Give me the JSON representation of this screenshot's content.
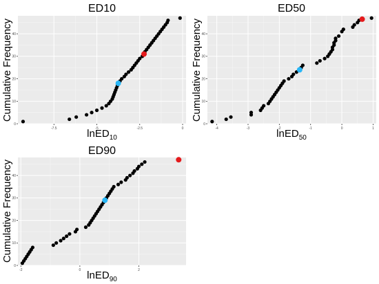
{
  "chart_data": [
    {
      "type": "scatter",
      "title": "ED10",
      "xlabel_base": "lnED",
      "xlabel_sub": "10",
      "ylabel": "Cumulative Frequency",
      "xlim": [
        -9.6,
        0.2
      ],
      "ylim": [
        0,
        48
      ],
      "x_ticks": [
        -7.5,
        -5,
        -2.5,
        0
      ],
      "x_tick_labels": [
        "-7.5",
        "-5",
        "-2.5",
        "0"
      ],
      "y_ticks": [
        0,
        10,
        20,
        30,
        40
      ],
      "y_tick_labels": [
        "0",
        "10",
        "20",
        "30",
        "40"
      ],
      "grid": true,
      "series": [
        {
          "color": "#000000",
          "points": [
            [
              -9.3,
              1
            ],
            [
              -6.6,
              2
            ],
            [
              -6.2,
              3
            ],
            [
              -5.6,
              4
            ],
            [
              -5.3,
              5
            ],
            [
              -5.0,
              6
            ],
            [
              -4.7,
              7
            ],
            [
              -4.45,
              8
            ],
            [
              -4.3,
              9
            ],
            [
              -4.2,
              10
            ],
            [
              -4.1,
              11
            ],
            [
              -4.05,
              12
            ],
            [
              -4.0,
              13
            ],
            [
              -3.95,
              14
            ],
            [
              -3.9,
              15
            ],
            [
              -3.85,
              16
            ],
            [
              -3.8,
              17
            ],
            [
              -3.65,
              19
            ],
            [
              -3.55,
              20
            ],
            [
              -3.4,
              21
            ],
            [
              -3.3,
              22
            ],
            [
              -3.15,
              23
            ],
            [
              -3.0,
              24
            ],
            [
              -2.9,
              25
            ],
            [
              -2.8,
              26
            ],
            [
              -2.7,
              27
            ],
            [
              -2.6,
              28
            ],
            [
              -2.5,
              29
            ],
            [
              -2.35,
              30
            ],
            [
              -2.2,
              32
            ],
            [
              -2.1,
              33
            ],
            [
              -2.0,
              34
            ],
            [
              -1.9,
              35
            ],
            [
              -1.8,
              36
            ],
            [
              -1.7,
              37
            ],
            [
              -1.6,
              38
            ],
            [
              -1.5,
              39
            ],
            [
              -1.4,
              40
            ],
            [
              -1.3,
              41
            ],
            [
              -1.2,
              42
            ],
            [
              -1.1,
              43
            ],
            [
              -1.0,
              44
            ],
            [
              -0.9,
              45
            ],
            [
              -0.85,
              46
            ],
            [
              -0.15,
              47
            ]
          ]
        },
        {
          "color": "#29b6f6",
          "points": [
            [
              -3.75,
              18
            ]
          ]
        },
        {
          "color": "#e41a1c",
          "points": [
            [
              -2.25,
              31
            ]
          ]
        }
      ]
    },
    {
      "type": "scatter",
      "title": "ED50",
      "xlabel_base": "lnED",
      "xlabel_sub": "50",
      "ylabel": "Cumulative Frequency",
      "xlim": [
        -4.3,
        1.1
      ],
      "ylim": [
        0,
        48
      ],
      "x_ticks": [
        -4,
        -3,
        -2,
        -1,
        0,
        1
      ],
      "x_tick_labels": [
        "-4",
        "-3",
        "-2",
        "-1",
        "0",
        "1"
      ],
      "y_ticks": [
        0,
        10,
        20,
        30,
        40
      ],
      "y_tick_labels": [
        "0",
        "10",
        "20",
        "30",
        "40"
      ],
      "grid": true,
      "series": [
        {
          "color": "#000000",
          "points": [
            [
              -4.15,
              1
            ],
            [
              -3.7,
              2
            ],
            [
              -3.55,
              3
            ],
            [
              -2.9,
              4
            ],
            [
              -2.9,
              5
            ],
            [
              -2.6,
              6
            ],
            [
              -2.55,
              7
            ],
            [
              -2.5,
              8
            ],
            [
              -2.35,
              9
            ],
            [
              -2.3,
              10
            ],
            [
              -2.25,
              11
            ],
            [
              -2.2,
              12
            ],
            [
              -2.15,
              13
            ],
            [
              -2.1,
              14
            ],
            [
              -2.05,
              15
            ],
            [
              -2.0,
              16
            ],
            [
              -1.95,
              17
            ],
            [
              -1.9,
              18
            ],
            [
              -1.85,
              19
            ],
            [
              -1.7,
              20
            ],
            [
              -1.6,
              21
            ],
            [
              -1.55,
              22
            ],
            [
              -1.45,
              23
            ],
            [
              -1.3,
              25
            ],
            [
              -1.25,
              26
            ],
            [
              -0.8,
              27
            ],
            [
              -0.7,
              28
            ],
            [
              -0.55,
              29
            ],
            [
              -0.45,
              30
            ],
            [
              -0.4,
              31
            ],
            [
              -0.35,
              32
            ],
            [
              -0.3,
              33
            ],
            [
              -0.3,
              34
            ],
            [
              -0.25,
              35
            ],
            [
              -0.25,
              36
            ],
            [
              -0.2,
              37
            ],
            [
              -0.2,
              38
            ],
            [
              -0.1,
              39
            ],
            [
              0.0,
              41
            ],
            [
              0.05,
              42
            ],
            [
              0.35,
              43
            ],
            [
              0.4,
              44
            ],
            [
              0.5,
              45
            ],
            [
              0.55,
              46
            ],
            [
              0.95,
              47
            ]
          ]
        },
        {
          "color": "#29b6f6",
          "points": [
            [
              -1.35,
              24
            ]
          ]
        },
        {
          "color": "#e41a1c",
          "points": [
            [
              0.65,
              46.5
            ]
          ]
        }
      ]
    },
    {
      "type": "scatter",
      "title": "ED90",
      "xlabel_base": "lnED",
      "xlabel_sub": "90",
      "ylabel": "Cumulative Frequency",
      "xlim": [
        -2.1,
        3.6
      ],
      "ylim": [
        0,
        48
      ],
      "x_ticks": [
        -2,
        0,
        2
      ],
      "x_tick_labels": [
        "-2",
        "0",
        "2"
      ],
      "y_ticks": [
        0,
        10,
        20,
        30,
        40
      ],
      "y_tick_labels": [
        "0",
        "10",
        "20",
        "30",
        "40"
      ],
      "grid": true,
      "series": [
        {
          "color": "#000000",
          "points": [
            [
              -1.95,
              1
            ],
            [
              -1.9,
              2
            ],
            [
              -1.85,
              3
            ],
            [
              -1.8,
              4
            ],
            [
              -1.75,
              5
            ],
            [
              -1.7,
              6
            ],
            [
              -1.65,
              7
            ],
            [
              -1.6,
              8
            ],
            [
              -0.9,
              9
            ],
            [
              -0.8,
              10
            ],
            [
              -0.65,
              11
            ],
            [
              -0.55,
              12
            ],
            [
              -0.45,
              13
            ],
            [
              -0.35,
              14
            ],
            [
              -0.15,
              15
            ],
            [
              -0.1,
              16
            ],
            [
              0.2,
              17
            ],
            [
              0.3,
              18
            ],
            [
              0.35,
              19
            ],
            [
              0.4,
              20
            ],
            [
              0.45,
              21
            ],
            [
              0.5,
              22
            ],
            [
              0.55,
              23
            ],
            [
              0.6,
              24
            ],
            [
              0.65,
              25
            ],
            [
              0.7,
              26
            ],
            [
              0.75,
              27
            ],
            [
              0.8,
              28
            ],
            [
              0.9,
              30
            ],
            [
              0.95,
              31
            ],
            [
              1.0,
              32
            ],
            [
              1.05,
              33
            ],
            [
              1.1,
              34
            ],
            [
              1.15,
              35
            ],
            [
              1.3,
              36
            ],
            [
              1.4,
              37
            ],
            [
              1.55,
              38
            ],
            [
              1.6,
              39
            ],
            [
              1.7,
              40
            ],
            [
              1.8,
              41
            ],
            [
              1.85,
              42
            ],
            [
              1.95,
              43
            ],
            [
              2.0,
              44
            ],
            [
              2.1,
              45
            ],
            [
              2.2,
              46
            ]
          ]
        },
        {
          "color": "#29b6f6",
          "points": [
            [
              0.85,
              29
            ]
          ]
        },
        {
          "color": "#e41a1c",
          "points": [
            [
              3.35,
              47
            ]
          ]
        }
      ]
    }
  ]
}
